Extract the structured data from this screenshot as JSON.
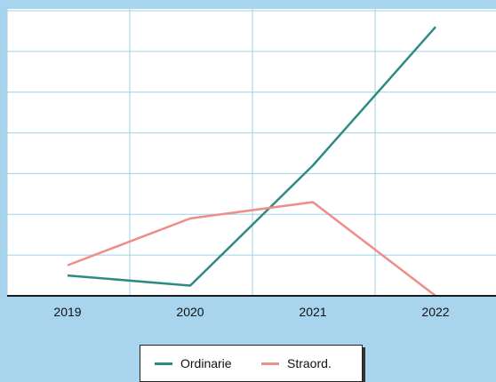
{
  "chart_data": {
    "type": "line",
    "categories": [
      "2019",
      "2020",
      "2021",
      "2022"
    ],
    "series": [
      {
        "name": "Ordinarie",
        "values": [
          5,
          2.5,
          32,
          66
        ],
        "color": "#2e8b84"
      },
      {
        "name": "Straord.",
        "values": [
          7.5,
          19,
          23,
          0
        ],
        "color": "#ef8d8a"
      }
    ],
    "ylim": [
      0,
      70
    ],
    "y_gridlines": [
      0,
      10,
      20,
      30,
      40,
      50,
      60,
      70
    ],
    "grid": true,
    "y_tick_labels": false,
    "legend_position": "bottom-center",
    "colors": {
      "plot_background": "#ffffff",
      "grid": "#9fd0e6",
      "page_background": "#a8d4ee",
      "axis": "#1a1a1a"
    }
  }
}
